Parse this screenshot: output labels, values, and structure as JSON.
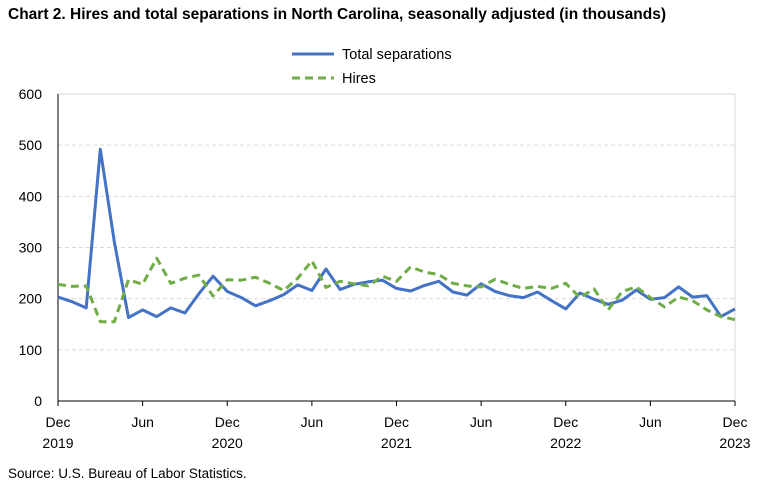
{
  "chart_data": {
    "type": "line",
    "title": "Chart 2. Hires and total separations in North Carolina, seasonally adjusted (in thousands)",
    "source": "Source: U.S. Bureau of Labor Statistics.",
    "xlabel": "",
    "ylabel": "",
    "ylim": [
      0,
      600
    ],
    "yticks": [
      "0",
      "100",
      "200",
      "300",
      "400",
      "500",
      "600"
    ],
    "grid": true,
    "legend_position": "top-center",
    "x_ticks": [
      {
        "index": 0,
        "month": "Dec",
        "year": "2019"
      },
      {
        "index": 6,
        "month": "Jun",
        "year": ""
      },
      {
        "index": 12,
        "month": "Dec",
        "year": "2020"
      },
      {
        "index": 18,
        "month": "Jun",
        "year": ""
      },
      {
        "index": 24,
        "month": "Dec",
        "year": "2021"
      },
      {
        "index": 30,
        "month": "Jun",
        "year": ""
      },
      {
        "index": 36,
        "month": "Dec",
        "year": "2022"
      },
      {
        "index": 42,
        "month": "Jun",
        "year": ""
      },
      {
        "index": 48,
        "month": "Dec",
        "year": "2023"
      }
    ],
    "series": [
      {
        "name": "Total separations",
        "color": "#4472c4",
        "style": "solid",
        "values": [
          203,
          194,
          182,
          492,
          310,
          163,
          178,
          165,
          182,
          172,
          210,
          244,
          214,
          202,
          186,
          196,
          208,
          227,
          216,
          258,
          218,
          228,
          233,
          236,
          220,
          215,
          226,
          234,
          213,
          207,
          229,
          214,
          206,
          202,
          213,
          196,
          180,
          211,
          199,
          189,
          197,
          217,
          199,
          202,
          223,
          203,
          206,
          165,
          180
        ]
      },
      {
        "name": "Hires",
        "color": "#70ad47",
        "style": "dashed",
        "values": [
          228,
          224,
          225,
          155,
          155,
          237,
          228,
          279,
          230,
          240,
          246,
          205,
          237,
          236,
          242,
          230,
          216,
          240,
          274,
          222,
          234,
          229,
          225,
          244,
          234,
          262,
          252,
          247,
          230,
          225,
          223,
          238,
          228,
          220,
          224,
          220,
          230,
          202,
          219,
          178,
          214,
          223,
          202,
          184,
          203,
          196,
          178,
          165,
          159
        ]
      }
    ]
  }
}
